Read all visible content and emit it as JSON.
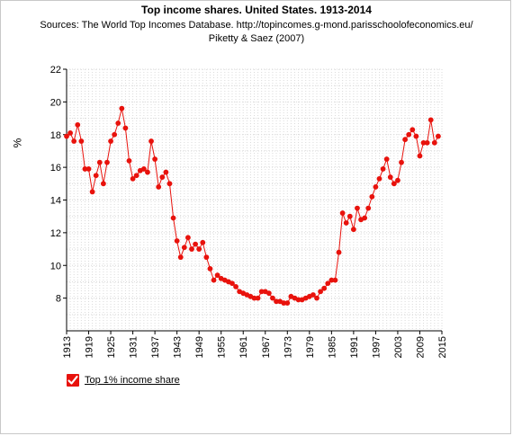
{
  "chart_data": {
    "type": "line",
    "title": "Top income shares. United States. 1913-2014",
    "subtitle_lines": [
      "Sources: The World Top Incomes Database. http://topincomes.g-mond.parisschoolofeconomics.eu/",
      "Piketty & Saez (2007)"
    ],
    "ylabel": "%",
    "xlim": [
      1913,
      2015
    ],
    "ylim": [
      6,
      22
    ],
    "x_ticks": [
      1913,
      1919,
      1925,
      1931,
      1937,
      1943,
      1949,
      1955,
      1961,
      1967,
      1973,
      1979,
      1985,
      1991,
      1997,
      2003,
      2009,
      2015
    ],
    "y_ticks": [
      8,
      10,
      12,
      14,
      16,
      18,
      20,
      22
    ],
    "grid": true,
    "series": [
      {
        "name": "Top 1% income share",
        "color": "#e8120c",
        "x": [
          1913,
          1914,
          1915,
          1916,
          1917,
          1918,
          1919,
          1920,
          1921,
          1922,
          1923,
          1924,
          1925,
          1926,
          1927,
          1928,
          1929,
          1930,
          1931,
          1932,
          1933,
          1934,
          1935,
          1936,
          1937,
          1938,
          1939,
          1940,
          1941,
          1942,
          1943,
          1944,
          1945,
          1946,
          1947,
          1948,
          1949,
          1950,
          1951,
          1952,
          1953,
          1954,
          1955,
          1956,
          1957,
          1958,
          1959,
          1960,
          1961,
          1962,
          1963,
          1964,
          1965,
          1966,
          1967,
          1968,
          1969,
          1970,
          1971,
          1972,
          1973,
          1974,
          1975,
          1976,
          1977,
          1978,
          1979,
          1980,
          1981,
          1982,
          1983,
          1984,
          1985,
          1986,
          1987,
          1988,
          1989,
          1990,
          1991,
          1992,
          1993,
          1994,
          1995,
          1996,
          1997,
          1998,
          1999,
          2000,
          2001,
          2002,
          2003,
          2004,
          2005,
          2006,
          2007,
          2008,
          2009,
          2010,
          2011,
          2012,
          2013,
          2014
        ],
        "values": [
          17.9,
          18.1,
          17.6,
          18.6,
          17.6,
          15.9,
          15.9,
          14.5,
          15.5,
          16.3,
          15.0,
          16.3,
          17.6,
          18.0,
          18.7,
          19.6,
          18.4,
          16.4,
          15.3,
          15.5,
          15.8,
          15.9,
          15.7,
          17.6,
          16.5,
          14.8,
          15.4,
          15.7,
          15.0,
          12.9,
          11.5,
          10.5,
          11.1,
          11.7,
          11.0,
          11.3,
          11.0,
          11.4,
          10.5,
          9.8,
          9.1,
          9.4,
          9.2,
          9.1,
          9.0,
          8.9,
          8.7,
          8.4,
          8.3,
          8.2,
          8.1,
          8.0,
          8.0,
          8.4,
          8.4,
          8.3,
          8.0,
          7.8,
          7.8,
          7.7,
          7.7,
          8.1,
          8.0,
          7.9,
          7.9,
          8.0,
          8.1,
          8.2,
          8.0,
          8.4,
          8.6,
          8.9,
          9.1,
          9.1,
          10.8,
          13.2,
          12.6,
          13.0,
          12.2,
          13.5,
          12.8,
          12.9,
          13.5,
          14.2,
          14.8,
          15.3,
          15.9,
          16.5,
          15.4,
          15.0,
          15.2,
          16.3,
          17.7,
          18.0,
          18.3,
          17.9,
          16.7,
          17.5,
          17.5,
          18.9,
          17.5,
          17.9
        ]
      }
    ]
  },
  "legend": {
    "label": "Top 1% income share",
    "checked": true,
    "check_glyph": "✓"
  }
}
